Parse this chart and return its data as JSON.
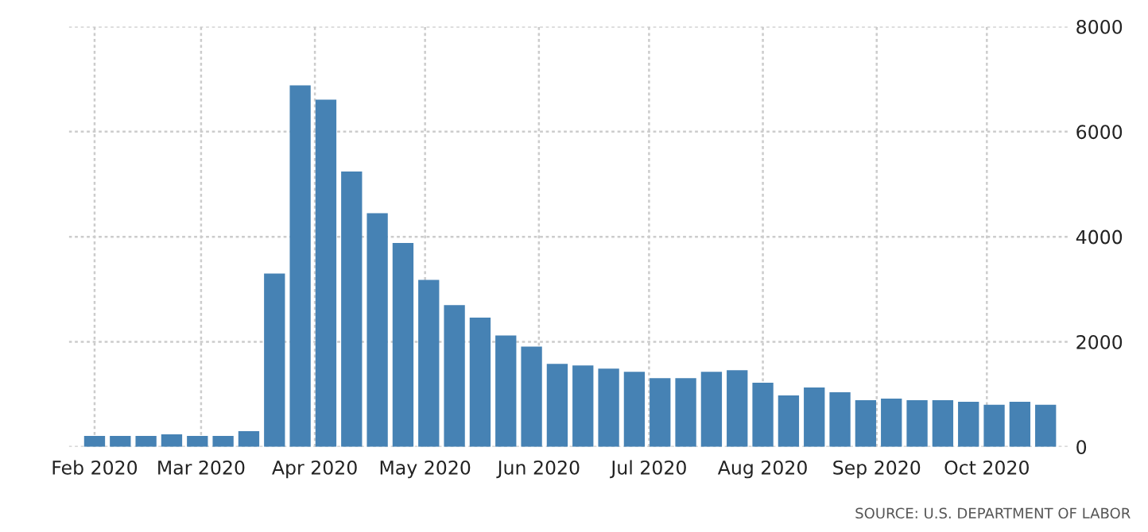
{
  "chart_data": {
    "type": "bar",
    "color": "#4682b4",
    "x": [
      "2020-02-01",
      "2020-02-08",
      "2020-02-15",
      "2020-02-22",
      "2020-02-29",
      "2020-03-07",
      "2020-03-14",
      "2020-03-21",
      "2020-03-28",
      "2020-04-04",
      "2020-04-11",
      "2020-04-18",
      "2020-04-25",
      "2020-05-02",
      "2020-05-09",
      "2020-05-16",
      "2020-05-23",
      "2020-05-30",
      "2020-06-06",
      "2020-06-13",
      "2020-06-20",
      "2020-06-27",
      "2020-07-04",
      "2020-07-11",
      "2020-07-18",
      "2020-07-25",
      "2020-08-01",
      "2020-08-08",
      "2020-08-15",
      "2020-08-22",
      "2020-08-29",
      "2020-09-05",
      "2020-09-12",
      "2020-09-19",
      "2020-09-26",
      "2020-10-03",
      "2020-10-10",
      "2020-10-17"
    ],
    "values": [
      210,
      210,
      210,
      240,
      210,
      210,
      300,
      3300,
      6880,
      6610,
      5240,
      4450,
      3880,
      3180,
      2700,
      2460,
      2120,
      1910,
      1580,
      1550,
      1490,
      1430,
      1310,
      1310,
      1430,
      1460,
      1220,
      980,
      1130,
      1040,
      890,
      920,
      890,
      890,
      860,
      800,
      860,
      800
    ],
    "xlim": [
      "2020-01-25",
      "2020-10-23"
    ],
    "xticks": [
      {
        "value": "2020-02-01",
        "label": "Feb 2020"
      },
      {
        "value": "2020-03-01",
        "label": "Mar 2020"
      },
      {
        "value": "2020-04-01",
        "label": "Apr 2020"
      },
      {
        "value": "2020-05-01",
        "label": "May 2020"
      },
      {
        "value": "2020-06-01",
        "label": "Jun 2020"
      },
      {
        "value": "2020-07-01",
        "label": "Jul 2020"
      },
      {
        "value": "2020-08-01",
        "label": "Aug 2020"
      },
      {
        "value": "2020-09-01",
        "label": "Sep 2020"
      },
      {
        "value": "2020-10-01",
        "label": "Oct 2020"
      }
    ],
    "ylim": [
      0,
      8000
    ],
    "yticks": [
      0,
      2000,
      4000,
      6000,
      8000
    ],
    "grid": true,
    "annotations": [
      "SOURCE: U.S. DEPARTMENT OF LABOR"
    ]
  }
}
